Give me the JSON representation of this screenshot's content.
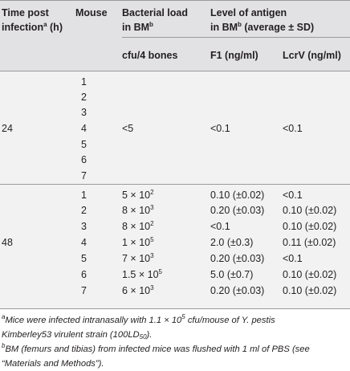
{
  "header": {
    "time_line1": "Time post",
    "time_line2a": "infection",
    "time_sup": "a",
    "time_line2b": " (h)",
    "mouse": "Mouse",
    "bact_line1": "Bacterial load",
    "bact_line2": "in BM",
    "bact_sup": "b",
    "antigen_line1": "Level of antigen",
    "antigen_line2a": "in BM",
    "antigen_sup": "b",
    "antigen_line2b": " (average ± SD)",
    "cfu": "cfu/4 bones",
    "f1": "F1 (ng/ml)",
    "lcrv": "LcrV (ng/ml)"
  },
  "group24": {
    "time": "24",
    "mice": [
      "1",
      "2",
      "3",
      "4",
      "5",
      "6",
      "7"
    ],
    "bact": "<5",
    "f1": "<0.1",
    "lcrv": "<0.1"
  },
  "group48": {
    "time": "48",
    "rows": [
      {
        "mouse": "1",
        "cfu_base": "5 × 10",
        "cfu_exp": "2",
        "f1": "0.10 (±0.02)",
        "lcrv": "<0.1"
      },
      {
        "mouse": "2",
        "cfu_base": "8 × 10",
        "cfu_exp": "3",
        "f1": "0.20 (±0.03)",
        "lcrv": "0.10 (±0.02)"
      },
      {
        "mouse": "3",
        "cfu_base": "8 × 10",
        "cfu_exp": "2",
        "f1": "<0.1",
        "lcrv": "0.10 (±0.02)"
      },
      {
        "mouse": "4",
        "cfu_base": "1 × 10",
        "cfu_exp": "5",
        "f1": "2.0 (±0.3)",
        "lcrv": "0.11 (±0.02)"
      },
      {
        "mouse": "5",
        "cfu_base": "7 × 10",
        "cfu_exp": "3",
        "f1": "0.20 (±0.03)",
        "lcrv": "<0.1"
      },
      {
        "mouse": "6",
        "cfu_base": "1.5 × 10",
        "cfu_exp": "5",
        "f1": "5.0 (±0.7)",
        "lcrv": "0.10 (±0.02)"
      },
      {
        "mouse": "7",
        "cfu_base": "6 × 10",
        "cfu_exp": "3",
        "f1": "0.20 (±0.03)",
        "lcrv": "0.10 (±0.02)"
      }
    ]
  },
  "footnotes": {
    "a_mark": "a",
    "a_text1": "Mice were infected intranasally with 1.1 × 10",
    "a_exp": "5",
    "a_text2": " cfu/mouse of Y. pestis",
    "a_text3": "Kimberley53 virulent strain (100LD",
    "a_sub": "50",
    "a_text4": ").",
    "b_mark": "b",
    "b_text1": "BM (femurs and tibias) from infected mice was flushed with 1 ml of PBS (see",
    "b_text2": "“Materials and Methods”)."
  }
}
